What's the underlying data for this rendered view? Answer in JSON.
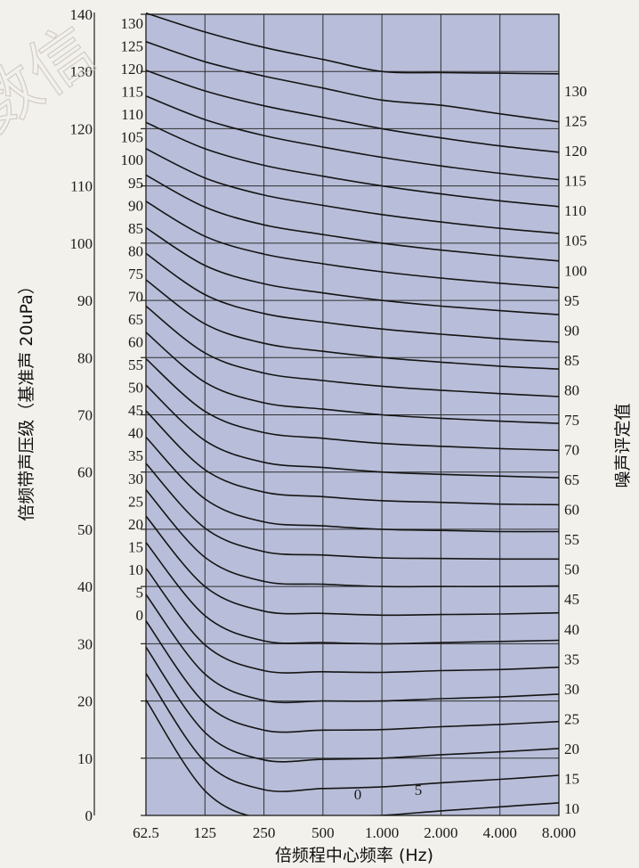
{
  "chart_data": {
    "type": "line",
    "ylabel": "倍频带声压级（基准声 20uPa）",
    "y2label": "噪声评定值",
    "xlabel": "倍频程中心频率 (Hz)",
    "x_ticks": [
      "62.5",
      "125",
      "250",
      "500",
      "1.000",
      "2.000",
      "4.000",
      "8.000"
    ],
    "y_ticks": [
      "0",
      "10",
      "20",
      "30",
      "40",
      "50",
      "60",
      "70",
      "80",
      "90",
      "100",
      "110",
      "120",
      "130",
      "140"
    ],
    "ylim": [
      0,
      140
    ],
    "left_curve_labels": [
      "130",
      "125",
      "120",
      "115",
      "110",
      "105",
      "100",
      "95",
      "90",
      "85",
      "80",
      "75",
      "70",
      "65",
      "60",
      "55",
      "50",
      "45",
      "40",
      "35",
      "30",
      "25",
      "20",
      "15",
      "10",
      "5",
      "0"
    ],
    "right_curve_labels": [
      "130",
      "125",
      "120",
      "115",
      "110",
      "105",
      "100",
      "95",
      "90",
      "85",
      "80",
      "75",
      "70",
      "65",
      "60",
      "55",
      "50",
      "45",
      "40",
      "35",
      "30",
      "25",
      "20",
      "15",
      "10"
    ],
    "inner_curve_labels": [
      "0",
      "5"
    ],
    "series": [
      {
        "nr": 130,
        "values": [
          140.2,
          136.9,
          134.2,
          132.1,
          130.0,
          129.8,
          129.7,
          129.6
        ]
      },
      {
        "nr": 125,
        "values": [
          135.2,
          131.7,
          129.2,
          127.1,
          125.0,
          124.1,
          122.6,
          121.2
        ]
      },
      {
        "nr": 120,
        "values": [
          130.2,
          126.6,
          124.0,
          122.0,
          120.0,
          118.4,
          117.0,
          115.9
        ]
      },
      {
        "nr": 115,
        "values": [
          125.7,
          121.6,
          118.8,
          116.8,
          115.0,
          113.5,
          112.2,
          111.1
        ]
      },
      {
        "nr": 110,
        "values": [
          121.1,
          116.5,
          113.6,
          111.7,
          110.0,
          108.6,
          107.4,
          106.4
        ]
      },
      {
        "nr": 105,
        "values": [
          116.5,
          111.4,
          108.4,
          106.6,
          105.0,
          103.7,
          102.6,
          101.7
        ]
      },
      {
        "nr": 100,
        "values": [
          111.9,
          106.3,
          103.2,
          101.5,
          100.0,
          98.8,
          97.8,
          96.9
        ]
      },
      {
        "nr": 95,
        "values": [
          107.3,
          101.2,
          98.1,
          96.4,
          95.0,
          93.9,
          93.0,
          92.2
        ]
      },
      {
        "nr": 90,
        "values": [
          102.7,
          96.1,
          92.9,
          91.3,
          90.0,
          89.0,
          88.2,
          87.5
        ]
      },
      {
        "nr": 85,
        "values": [
          98.2,
          91.0,
          87.7,
          86.2,
          85.0,
          84.1,
          83.3,
          82.7
        ]
      },
      {
        "nr": 80,
        "values": [
          93.6,
          85.9,
          82.5,
          81.1,
          80.0,
          79.2,
          78.5,
          78.0
        ]
      },
      {
        "nr": 75,
        "values": [
          89.0,
          80.8,
          77.3,
          76.0,
          75.0,
          74.3,
          73.7,
          73.2
        ]
      },
      {
        "nr": 70,
        "values": [
          84.4,
          75.7,
          72.1,
          71.0,
          70.0,
          69.4,
          68.9,
          68.5
        ]
      },
      {
        "nr": 65,
        "values": [
          79.8,
          70.6,
          66.9,
          65.9,
          65.0,
          64.5,
          64.1,
          63.8
        ]
      },
      {
        "nr": 60,
        "values": [
          75.2,
          65.5,
          61.7,
          60.8,
          60.0,
          59.6,
          59.3,
          59.0
        ]
      },
      {
        "nr": 55,
        "values": [
          70.7,
          60.4,
          56.5,
          55.7,
          55.0,
          54.7,
          54.4,
          54.3
        ]
      },
      {
        "nr": 50,
        "values": [
          66.1,
          55.3,
          51.3,
          50.6,
          50.0,
          49.8,
          49.6,
          49.6
        ]
      },
      {
        "nr": 45,
        "values": [
          61.5,
          50.2,
          46.1,
          45.5,
          45.0,
          44.9,
          44.8,
          44.8
        ]
      },
      {
        "nr": 40,
        "values": [
          56.9,
          45.1,
          40.9,
          40.4,
          40.0,
          40.0,
          40.0,
          40.1
        ]
      },
      {
        "nr": 35,
        "values": [
          52.3,
          40.0,
          35.7,
          35.3,
          35.0,
          35.1,
          35.2,
          35.4
        ]
      },
      {
        "nr": 30,
        "values": [
          47.7,
          34.9,
          30.5,
          30.2,
          30.0,
          30.2,
          30.4,
          30.6
        ]
      },
      {
        "nr": 25,
        "values": [
          43.2,
          29.8,
          25.3,
          25.1,
          25.0,
          25.3,
          25.5,
          25.9
        ]
      },
      {
        "nr": 20,
        "values": [
          38.6,
          24.7,
          20.1,
          20.0,
          20.0,
          20.4,
          20.7,
          21.2
        ]
      },
      {
        "nr": 15,
        "values": [
          34.0,
          19.6,
          14.9,
          14.9,
          15.0,
          15.5,
          15.9,
          16.4
        ]
      },
      {
        "nr": 10,
        "values": [
          29.4,
          14.5,
          9.7,
          9.8,
          10.0,
          10.6,
          11.1,
          11.7
        ]
      },
      {
        "nr": 5,
        "values": [
          24.8,
          9.4,
          4.5,
          4.7,
          5.0,
          5.7,
          6.3,
          7.0
        ]
      },
      {
        "nr": 0,
        "values": [
          20.2,
          4.3,
          -0.7,
          -0.4,
          0.0,
          0.8,
          1.5,
          2.2
        ]
      }
    ],
    "grid": true
  },
  "colors": {
    "plot_bg": "#b8bed9",
    "curve": "#151515",
    "grid": "#2f2f2f"
  },
  "watermark": "数信"
}
